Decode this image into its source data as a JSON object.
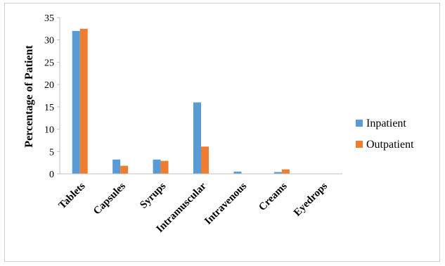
{
  "chart_data": {
    "type": "bar",
    "categories": [
      "Tablets",
      "Capsules",
      "Syrups",
      "Intramuscular",
      "Intravenous",
      "Creams",
      "Eyedrops"
    ],
    "series": [
      {
        "name": "Inpatient",
        "values": [
          32,
          3.2,
          3.2,
          16,
          0.5,
          0.4,
          0
        ],
        "color": "#5b9bd5"
      },
      {
        "name": "Outpatient",
        "values": [
          32.5,
          1.8,
          2.9,
          6.1,
          0,
          1.0,
          0
        ],
        "color": "#ed7d31"
      }
    ],
    "title": "",
    "xlabel": "",
    "ylabel": "Percentage of Patient",
    "ylim": [
      0,
      35
    ],
    "yticks": [
      0,
      5,
      10,
      15,
      20,
      25,
      30,
      35
    ],
    "grid": false,
    "legend": "right"
  }
}
